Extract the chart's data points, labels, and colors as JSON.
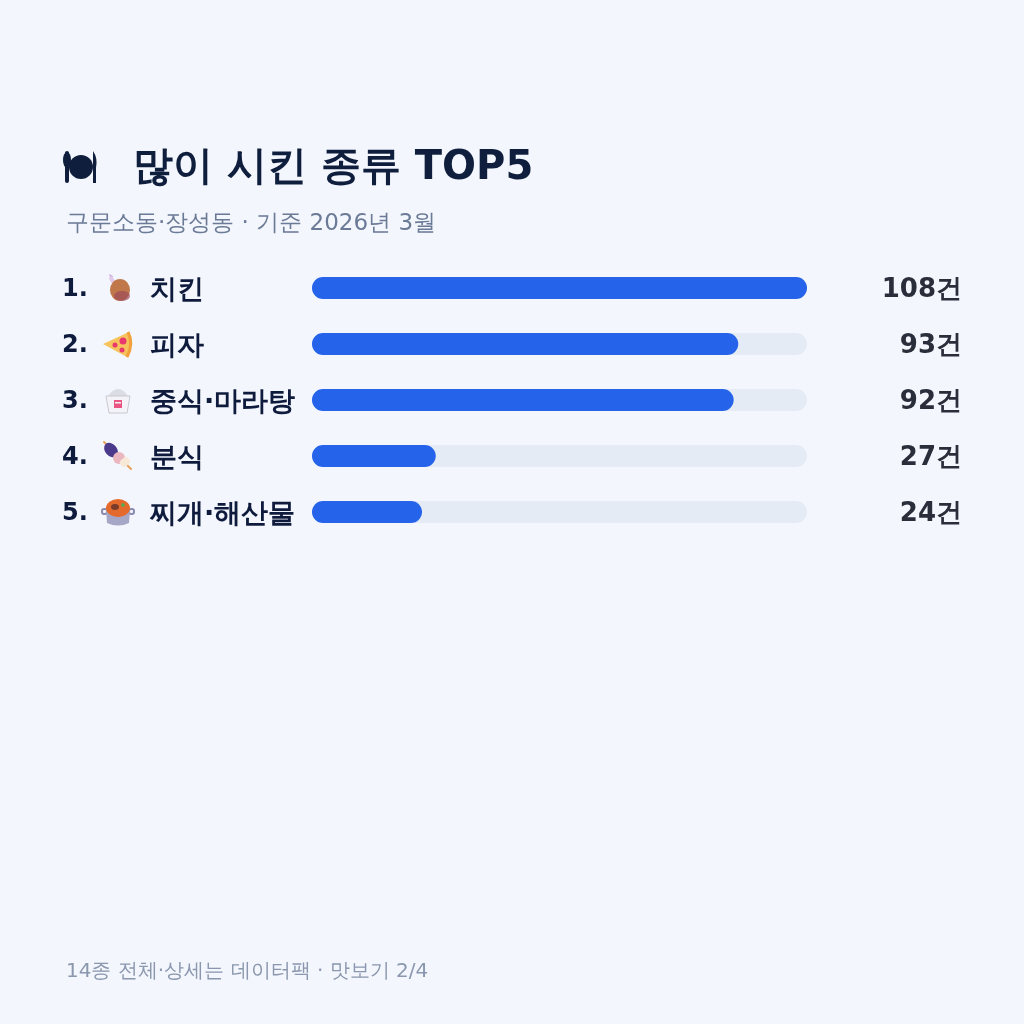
{
  "chart_data": {
    "type": "bar",
    "orientation": "horizontal",
    "title": "많이 시킨 종류 TOP5",
    "subtitle": "구문소동·장성동 · 기준 2026년 3월",
    "categories": [
      "1. 치킨",
      "2. 피자",
      "3. 중식·마라탕",
      "4. 분식",
      "5. 찌개·해산물"
    ],
    "values": [
      108,
      93,
      92,
      27,
      24
    ],
    "value_labels": [
      "108건",
      "93건",
      "92건",
      "27건",
      "24건"
    ],
    "color": "#2563eb",
    "xlim": [
      0,
      108
    ],
    "tick_labels": "y",
    "annotations": [
      "14종 전체·상세는 데이터팩 · 맛보기 2/4"
    ]
  }
}
